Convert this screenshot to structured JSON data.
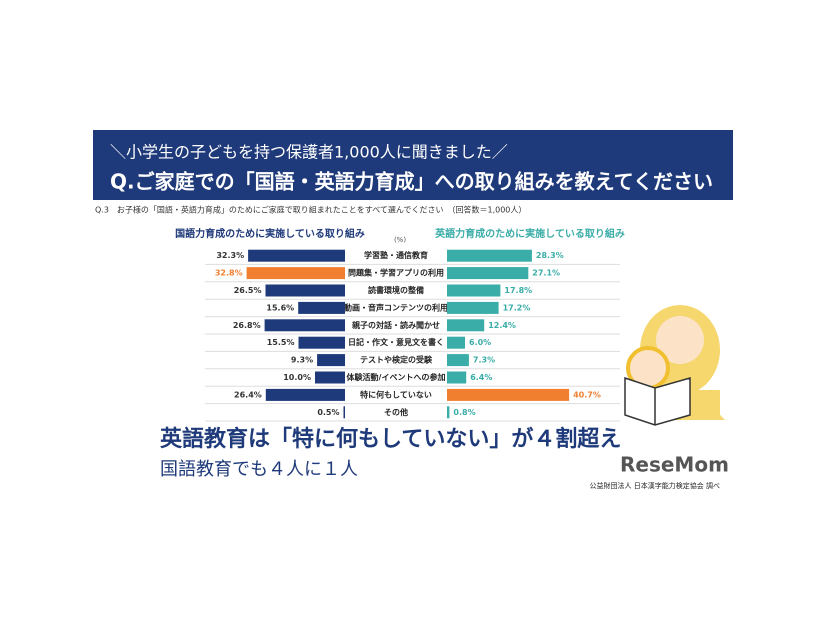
{
  "chart_data": {
    "type": "butterfly",
    "title": "Q.ご家庭での「国語・英語力育成」への取り組みを教えてください",
    "subtitle": "＼小学生の子どもを持つ保護者1,000人に聞きました／",
    "note": "Q.3　お子様の「国語・英語力育成」のためにご家庭で取り組まれたことをすべて選んでください　（回答数＝1,000人）",
    "unit": "(%)",
    "categories": [
      "学習塾・通信教育",
      "問題集・学習アプリの利用",
      "読書環境の整備",
      "動画・音声コンテンツの利用",
      "親子の対話・読み聞かせ",
      "日記・作文・意見文を書く",
      "テストや検定の受験",
      "体験活動/イベントへの参加",
      "特に何もしていない",
      "その他"
    ],
    "series": [
      {
        "name": "国語力育成のために実施している取り組み",
        "color": "#1f3a7a",
        "colors": [
          "#1f3a7a",
          "#f08030",
          "#1f3a7a",
          "#1f3a7a",
          "#1f3a7a",
          "#1f3a7a",
          "#1f3a7a",
          "#1f3a7a",
          "#1f3a7a",
          "#1f3a7a"
        ],
        "values": [
          32.3,
          32.8,
          26.5,
          15.6,
          26.8,
          15.5,
          9.3,
          10.0,
          26.4,
          0.5
        ],
        "value_labels": [
          "32.3%",
          "32.8%",
          "26.5%",
          "15.6%",
          "26.8%",
          "15.5%",
          "9.3%",
          "10.0%",
          "26.4%",
          "0.5%"
        ]
      },
      {
        "name": "英語力育成のために実施している取り組み",
        "color": "#3aada8",
        "colors": [
          "#3aada8",
          "#3aada8",
          "#3aada8",
          "#3aada8",
          "#3aada8",
          "#3aada8",
          "#3aada8",
          "#3aada8",
          "#f08030",
          "#3aada8"
        ],
        "values": [
          28.3,
          27.1,
          17.8,
          17.2,
          12.4,
          6.0,
          7.3,
          6.4,
          40.7,
          0.8
        ],
        "value_labels": [
          "28.3%",
          "27.1%",
          "17.8%",
          "17.2%",
          "12.4%",
          "6.0%",
          "7.3%",
          "6.4%",
          "40.7%",
          "0.8%"
        ]
      }
    ],
    "headline": "英語教育は「特に何もしていない」が４割超え",
    "subheadline": "国語教育でも４人に１人",
    "source": "公益財団法人 日本漢字能力検定協会 調べ",
    "logo": "ReseMom"
  }
}
